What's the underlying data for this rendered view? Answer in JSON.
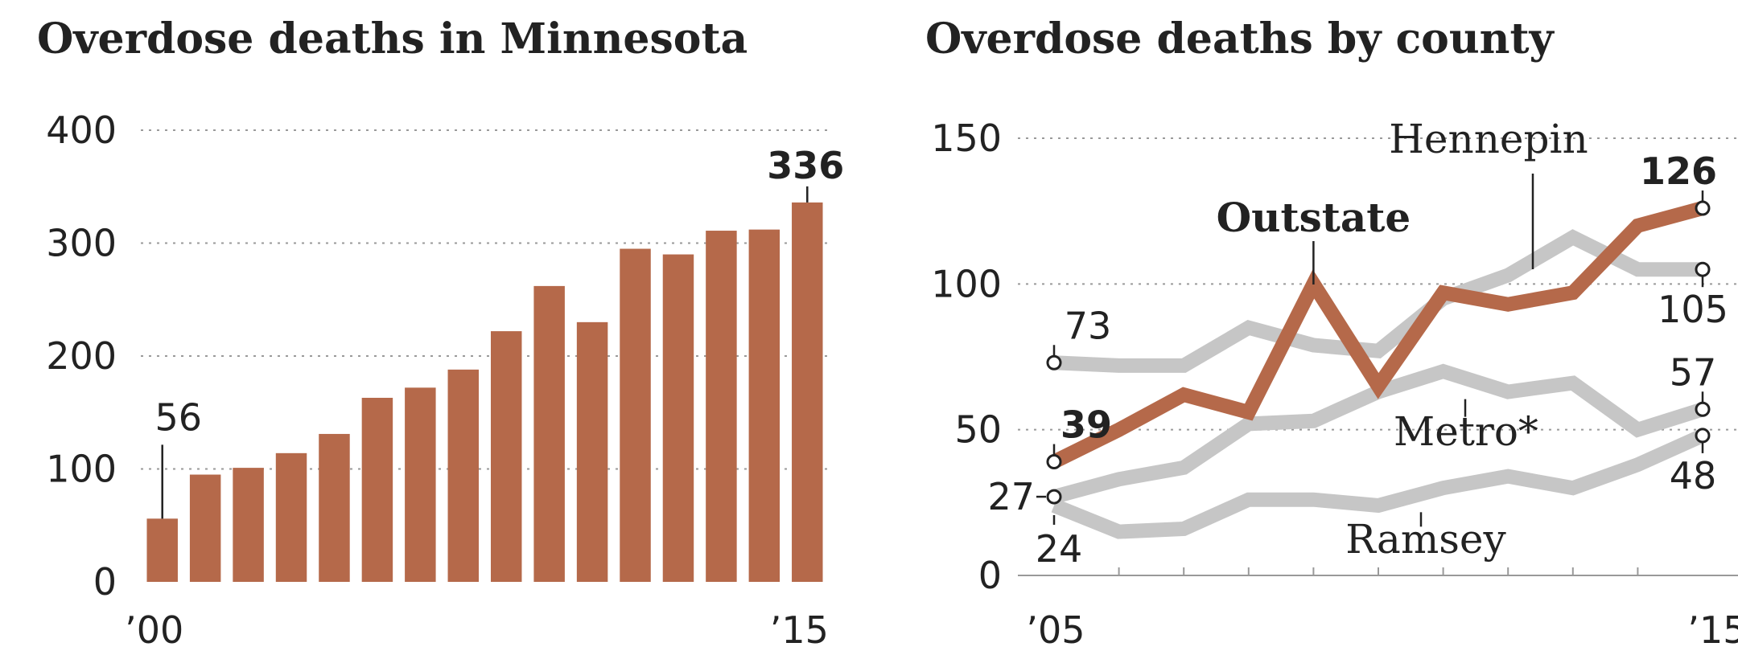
{
  "chart_data": [
    {
      "type": "bar",
      "title": "Overdose deaths in Minnesota",
      "categories": [
        "2000",
        "2001",
        "2002",
        "2003",
        "2004",
        "2005",
        "2006",
        "2007",
        "2008",
        "2009",
        "2010",
        "2011",
        "2012",
        "2013",
        "2014",
        "2015"
      ],
      "x_tick_labels": [
        "’00",
        "’15"
      ],
      "values": [
        56,
        95,
        101,
        114,
        131,
        163,
        172,
        188,
        222,
        262,
        230,
        295,
        290,
        311,
        312,
        336
      ],
      "ylim": [
        0,
        400
      ],
      "yticks": [
        0,
        100,
        200,
        300,
        400
      ],
      "grid": true,
      "bar_color": "#b5694a",
      "annotations": [
        {
          "category": "2000",
          "text": "56"
        },
        {
          "category": "2015",
          "text": "336"
        }
      ]
    },
    {
      "type": "line",
      "title": "Overdose deaths by county",
      "x": [
        2005,
        2006,
        2007,
        2008,
        2009,
        2010,
        2011,
        2012,
        2013,
        2014,
        2015
      ],
      "x_tick_labels": [
        "’05",
        "’15"
      ],
      "ylim": [
        0,
        150
      ],
      "yticks": [
        0,
        50,
        100,
        150
      ],
      "grid": true,
      "series": [
        {
          "name": "Hennepin",
          "color": "#c6c6c6",
          "values": [
            73,
            72,
            72,
            85,
            79,
            77,
            95,
            103,
            116,
            105,
            105
          ],
          "start_label": "73",
          "end_label": "105"
        },
        {
          "name": "Metro*",
          "color": "#c6c6c6",
          "values": [
            27,
            33,
            37,
            52,
            53,
            63,
            70,
            63,
            66,
            50,
            57
          ],
          "end_label": "57"
        },
        {
          "name": "Ramsey",
          "color": "#c6c6c6",
          "values": [
            24,
            15,
            16,
            26,
            26,
            24,
            30,
            34,
            30,
            38,
            48
          ],
          "start_label": "24",
          "end_label": "48"
        },
        {
          "name": "Outstate",
          "color": "#b5694a",
          "values": [
            39,
            50,
            62,
            56,
            100,
            65,
            97,
            93,
            97,
            120,
            126
          ],
          "start_label": "39",
          "end_label": "126"
        }
      ],
      "extra_labels": {
        "metro_start": "27"
      }
    }
  ]
}
